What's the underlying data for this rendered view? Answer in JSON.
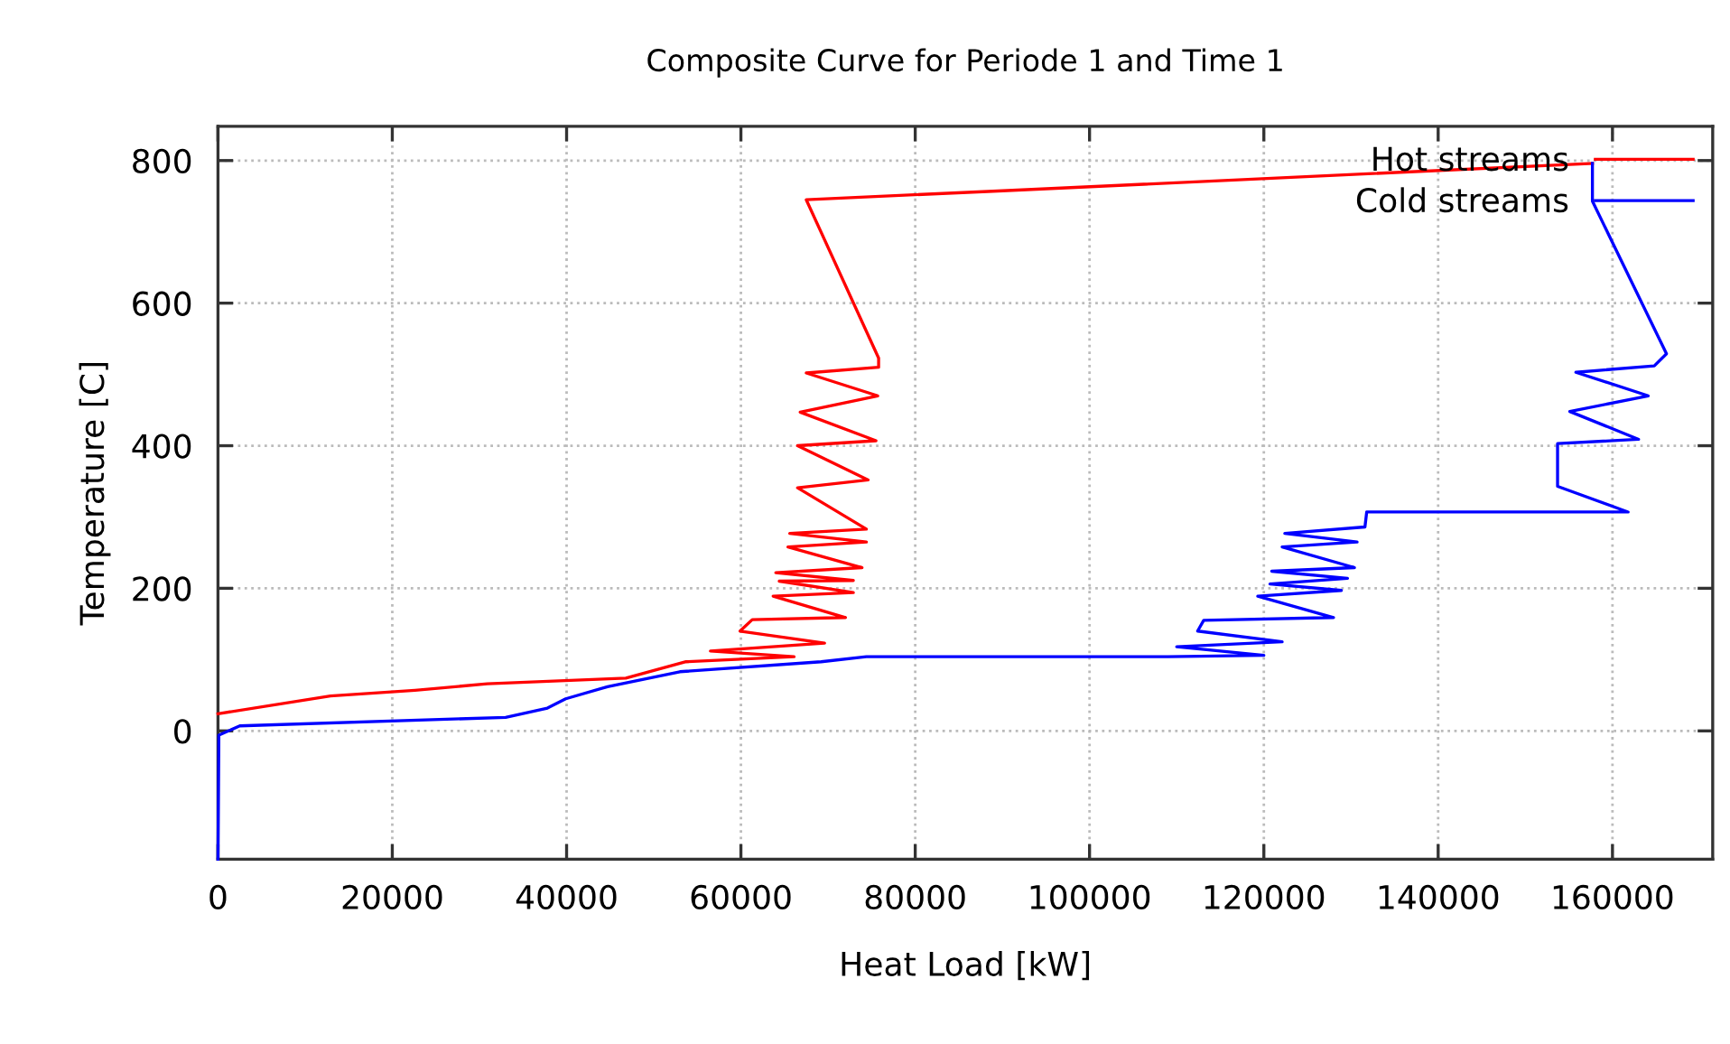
{
  "chart_data": {
    "type": "line",
    "title": "Composite Curve for Periode 1 and Time 1",
    "xlabel": "Heat Load [kW]",
    "ylabel": "Temperature [C]",
    "xlim": [
      0,
      171500
    ],
    "ylim": [
      -180,
      848
    ],
    "xticks": [
      0,
      20000,
      40000,
      60000,
      80000,
      100000,
      120000,
      140000,
      160000
    ],
    "yticks": [
      0,
      200,
      400,
      600,
      800
    ],
    "grid": true,
    "legend": "top right",
    "marker": "none",
    "line_style": "solid",
    "series": [
      {
        "name": "Hot streams",
        "color": "#ff0000",
        "x": [
          0,
          12900,
          22600,
          30900,
          46800,
          53700,
          66100,
          56500,
          69600,
          59900,
          61300,
          72000,
          63700,
          72900,
          64400,
          72900,
          64000,
          73900,
          65400,
          74400,
          65600,
          74400,
          66500,
          74600,
          66500,
          75500,
          66800,
          75700,
          67500,
          75800,
          75800,
          67500,
          88900,
          157700
        ],
        "values": [
          24,
          49,
          57,
          66,
          74,
          97,
          104,
          112,
          123,
          140,
          156,
          159,
          189,
          194,
          210,
          211,
          222,
          229,
          258,
          265,
          277,
          283,
          341,
          352,
          400,
          407,
          447,
          470,
          502,
          510,
          523,
          745,
          757,
          796
        ]
      },
      {
        "name": "Cold streams",
        "color": "#0000ff",
        "x": [
          0,
          100,
          2500,
          33000,
          37800,
          39900,
          44700,
          53000,
          69200,
          74400,
          109000,
          120000,
          110000,
          122100,
          112400,
          113100,
          128000,
          119300,
          128900,
          120700,
          129600,
          120900,
          130400,
          122100,
          130700,
          122400,
          131600,
          131800,
          161800,
          153700,
          153700,
          163000,
          155100,
          164100,
          155800,
          164800,
          166200,
          157700,
          157700
        ],
        "values": [
          -180,
          -6,
          7,
          19,
          32,
          45,
          62,
          83,
          97,
          104,
          104,
          106,
          118,
          125,
          140,
          155,
          159,
          189,
          197,
          206,
          214,
          224,
          229,
          258,
          265,
          277,
          286,
          307,
          307,
          343,
          403,
          409,
          448,
          470,
          503,
          512,
          529,
          743,
          796
        ]
      }
    ]
  }
}
